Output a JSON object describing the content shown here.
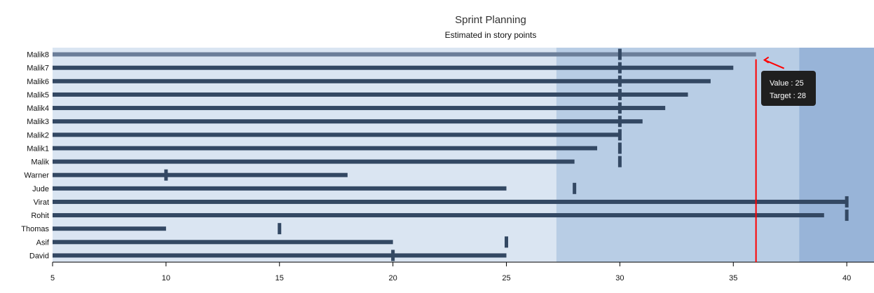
{
  "chart_data": {
    "type": "bullet",
    "title": "Sprint Planning",
    "subtitle": "Estimated in story points",
    "x_range": [
      5,
      41.2
    ],
    "x_ticks": [
      5,
      10,
      15,
      20,
      25,
      30,
      35,
      40
    ],
    "bands": [
      {
        "from": 5,
        "to": 27.2,
        "color": "#dae5f2"
      },
      {
        "from": 27.2,
        "to": 37.9,
        "color": "#b8cde5"
      },
      {
        "from": 37.9,
        "to": 41.2,
        "color": "#98b4d8"
      }
    ],
    "bar_color": "#334863",
    "highlight_bar_color": "#6b7e99",
    "reference_line": {
      "value": 36,
      "color": "#ff0000"
    },
    "categories": [
      "Malik8",
      "Malik7",
      "Malik6",
      "Malik5",
      "Malik4",
      "Malik3",
      "Malik2",
      "Malik1",
      "Malik",
      "Warner",
      "Jude",
      "Virat",
      "Rohit",
      "Thomas",
      "Asif",
      "David"
    ],
    "values": [
      36,
      35,
      34,
      33,
      32,
      31,
      30,
      29,
      28,
      18,
      25,
      40,
      39,
      10,
      20,
      25
    ],
    "targets": [
      30,
      30,
      30,
      30,
      30,
      30,
      30,
      30,
      30,
      10,
      28,
      40,
      40,
      15,
      25,
      20
    ],
    "highlighted_category": "Malik8"
  },
  "tooltip": {
    "value_text": "Value : 25",
    "target_text": "Target : 28"
  }
}
